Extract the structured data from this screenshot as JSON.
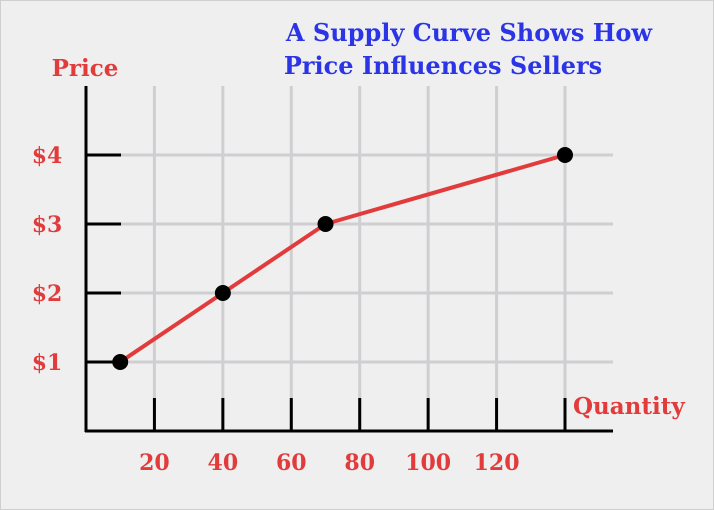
{
  "colors": {
    "background": "#efeff0",
    "grid": "#cfcfd2",
    "axis": "#000000",
    "title": "#2b35e6",
    "labels": "#e23b3b",
    "line": "#e23b3b",
    "points": "#000000"
  },
  "chart_data": {
    "type": "line",
    "title_lines": [
      "A Supply Curve Shows How",
      "Price Influences Sellers"
    ],
    "xlabel": "Quantity",
    "ylabel": "Price",
    "x_ticks": [
      20,
      40,
      60,
      80,
      100,
      120
    ],
    "x_tick_labels": [
      "20",
      "40",
      "60",
      "80",
      "100",
      "120"
    ],
    "y_ticks": [
      1,
      2,
      3,
      4
    ],
    "y_tick_labels": [
      "$1",
      "$2",
      "$3",
      "$4"
    ],
    "xlim": [
      0,
      140
    ],
    "ylim": [
      0,
      5
    ],
    "grid": true,
    "series": [
      {
        "x": [
          10,
          40,
          70,
          140
        ],
        "y": [
          1,
          2,
          3,
          4
        ]
      }
    ]
  }
}
